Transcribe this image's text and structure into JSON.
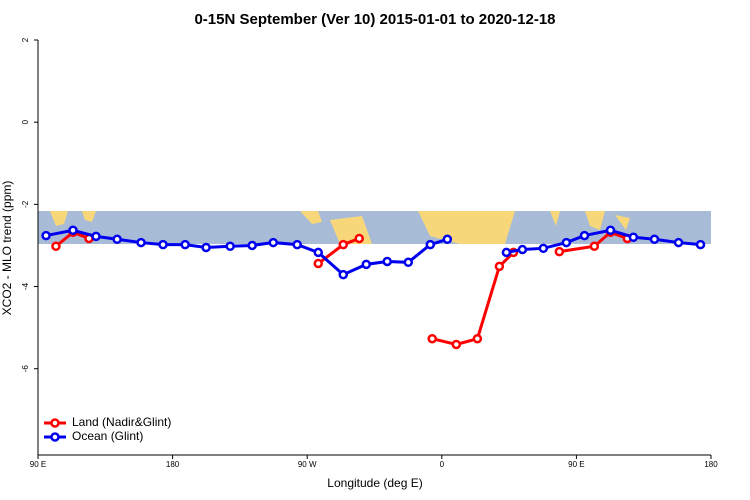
{
  "chart_data": {
    "type": "line",
    "title": "0-15N September (Ver 10)   2015-01-01 to 2020-12-18",
    "x_label": "Longitude (deg E)",
    "y_label": "XCO2 - MLO trend (ppm)",
    "xlim": [
      90,
      540
    ],
    "ylim": [
      -8.1,
      2
    ],
    "xticks": [
      {
        "value": 90,
        "label": "90 E"
      },
      180,
      {
        "value": 270,
        "label": "90 W"
      },
      {
        "value": 360,
        "label": "0"
      },
      {
        "value": 450,
        "label": "90 E"
      },
      {
        "value": 540,
        "label": "180"
      }
    ],
    "yticks": [
      -6,
      -4,
      -2,
      0,
      2
    ],
    "legend": "bottom-left",
    "series": [
      {
        "name": "Land (Nadir&Glint)",
        "color": "#ff0000",
        "x": [
          102.0,
          113.4,
          124.1,
          null,
          277.4,
          294.1,
          304.8,
          null,
          353.6,
          369.7,
          383.8,
          398.5,
          407.9,
          null,
          438.6,
          462.0,
          472.8,
          484.1
        ],
        "values": [
          -3.02,
          -2.68,
          -2.83,
          null,
          -3.44,
          -2.98,
          -2.83,
          null,
          -5.27,
          -5.41,
          -5.27,
          -3.51,
          -3.17,
          null,
          -3.15,
          -3.02,
          -2.68,
          -2.83
        ]
      },
      {
        "name": "Ocean (Glint)",
        "color": "#0000ee",
        "x": [
          95.4,
          113.4,
          128.8,
          142.9,
          158.9,
          173.6,
          188.4,
          202.4,
          218.5,
          233.2,
          247.3,
          263.3,
          277.4,
          294.1,
          309.5,
          323.5,
          337.6,
          352.3,
          363.7,
          null,
          403.2,
          413.9,
          427.9,
          443.3,
          455.4,
          472.8,
          488.1,
          502.2,
          518.3,
          533.0
        ],
        "values": [
          -2.76,
          -2.63,
          -2.78,
          -2.85,
          -2.93,
          -2.98,
          -2.98,
          -3.05,
          -3.02,
          -3.0,
          -2.93,
          -2.98,
          -3.17,
          -3.71,
          -3.46,
          -3.39,
          -3.41,
          -2.98,
          -2.85,
          null,
          -3.17,
          -3.1,
          -3.07,
          -2.93,
          -2.76,
          -2.63,
          -2.8,
          -2.85,
          -2.93,
          -2.98
        ]
      }
    ]
  }
}
